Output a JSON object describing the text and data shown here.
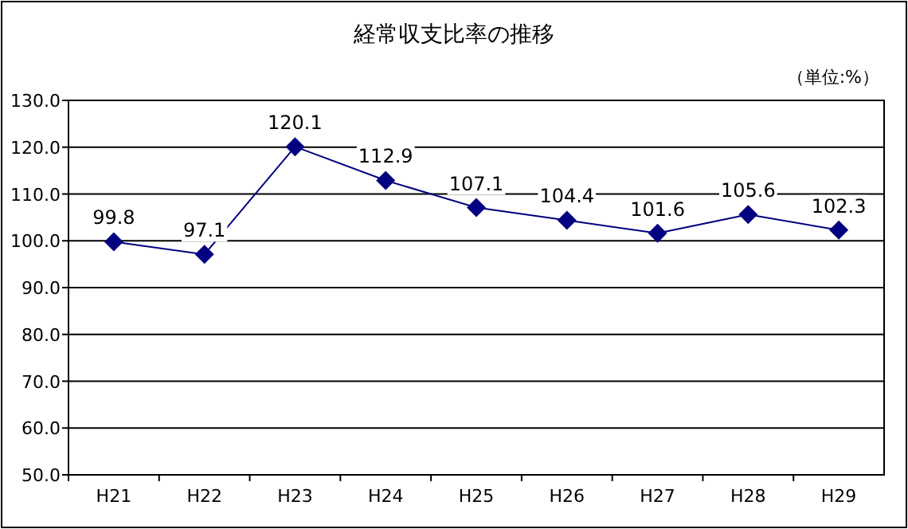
{
  "chart_data": {
    "type": "line",
    "title": "経常収支比率の推移",
    "annotations": [
      "（単位:%）"
    ],
    "categories": [
      "H21",
      "H22",
      "H23",
      "H24",
      "H25",
      "H26",
      "H27",
      "H28",
      "H29"
    ],
    "series": [
      {
        "color": "#000080",
        "values": [
          99.8,
          97.1,
          120.1,
          112.9,
          107.1,
          104.4,
          101.6,
          105.6,
          102.3
        ]
      }
    ],
    "ylim": [
      50,
      130
    ],
    "yticks": [
      {
        "value": 50,
        "label": "50.0"
      },
      {
        "value": 60,
        "label": "60.0"
      },
      {
        "value": 70,
        "label": "70.0"
      },
      {
        "value": 80,
        "label": "80.0"
      },
      {
        "value": 90,
        "label": "90.0"
      },
      {
        "value": 100,
        "label": "100.0"
      },
      {
        "value": 110,
        "label": "110.0"
      },
      {
        "value": 120,
        "label": "120.0"
      },
      {
        "value": 130,
        "label": "130.0"
      }
    ],
    "grid": "y",
    "marker": "diamond",
    "line_style": "solid",
    "data_labels": true
  }
}
